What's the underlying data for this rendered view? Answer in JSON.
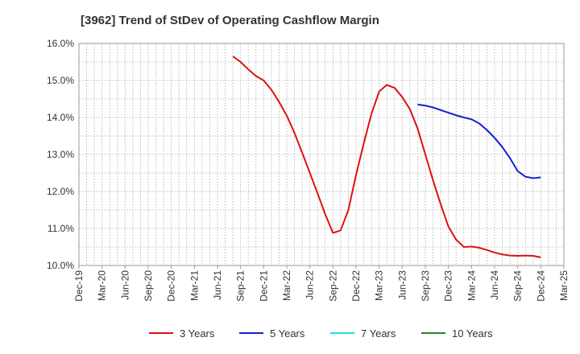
{
  "chart_data": {
    "type": "line",
    "title": "[3962]  Trend of StDev of Operating Cashflow Margin",
    "xlabel": "",
    "ylabel": "",
    "x_tick_labels": [
      "Dec-19",
      "Mar-20",
      "Jun-20",
      "Sep-20",
      "Dec-20",
      "Mar-21",
      "Jun-21",
      "Sep-21",
      "Dec-21",
      "Mar-22",
      "Jun-22",
      "Sep-22",
      "Dec-22",
      "Mar-23",
      "Jun-23",
      "Sep-23",
      "Dec-23",
      "Mar-24",
      "Jun-24",
      "Sep-24",
      "Dec-24",
      "Mar-25"
    ],
    "y_tick_labels": [
      "10.0%",
      "11.0%",
      "12.0%",
      "13.0%",
      "14.0%",
      "15.0%",
      "16.0%"
    ],
    "ylim": [
      10.0,
      16.0
    ],
    "grid": true,
    "legend_position": "bottom",
    "series": [
      {
        "name": "3 Years",
        "color": "#dd1111",
        "x": [
          "Aug-21",
          "Sep-21",
          "Oct-21",
          "Nov-21",
          "Dec-21",
          "Jan-22",
          "Feb-22",
          "Mar-22",
          "Apr-22",
          "May-22",
          "Jun-22",
          "Jul-22",
          "Aug-22",
          "Sep-22",
          "Oct-22",
          "Nov-22",
          "Dec-22",
          "Jan-23",
          "Feb-23",
          "Mar-23",
          "Apr-23",
          "May-23",
          "Jun-23",
          "Jul-23",
          "Aug-23",
          "Sep-23",
          "Oct-23",
          "Nov-23",
          "Dec-23",
          "Jan-24",
          "Feb-24",
          "Mar-24",
          "Apr-24",
          "May-24",
          "Jun-24",
          "Jul-24",
          "Aug-24",
          "Sep-24",
          "Oct-24",
          "Nov-24",
          "Dec-24"
        ],
        "values": [
          15.65,
          15.5,
          15.3,
          15.12,
          15.0,
          14.75,
          14.42,
          14.05,
          13.58,
          13.05,
          12.5,
          11.95,
          11.38,
          10.88,
          10.95,
          11.5,
          12.45,
          13.3,
          14.1,
          14.7,
          14.88,
          14.8,
          14.55,
          14.22,
          13.7,
          13.0,
          12.3,
          11.65,
          11.05,
          10.7,
          10.5,
          10.51,
          10.48,
          10.42,
          10.35,
          10.3,
          10.27,
          10.26,
          10.27,
          10.26,
          10.22
        ]
      },
      {
        "name": "5 Years",
        "color": "#1122cc",
        "x": [
          "Aug-23",
          "Sep-23",
          "Oct-23",
          "Nov-23",
          "Dec-23",
          "Jan-24",
          "Feb-24",
          "Mar-24",
          "Apr-24",
          "May-24",
          "Jun-24",
          "Jul-24",
          "Aug-24",
          "Sep-24",
          "Oct-24",
          "Nov-24",
          "Dec-24"
        ],
        "values": [
          14.35,
          14.32,
          14.27,
          14.2,
          14.13,
          14.06,
          14.0,
          13.95,
          13.84,
          13.66,
          13.45,
          13.2,
          12.9,
          12.55,
          12.4,
          12.36,
          12.38
        ]
      },
      {
        "name": "7 Years",
        "color": "#22dddd",
        "x": [],
        "values": []
      },
      {
        "name": "10 Years",
        "color": "#228822",
        "x": [],
        "values": []
      }
    ]
  }
}
